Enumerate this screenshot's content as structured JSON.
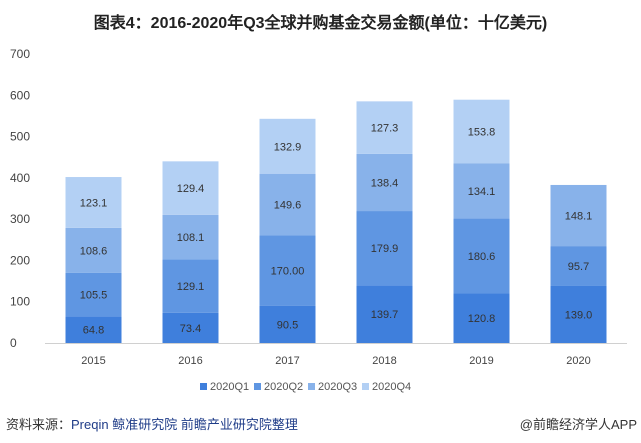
{
  "chart_data": {
    "type": "stacked-bar",
    "title": "图表4：2016-2020年Q3全球并购基金交易金额(单位：十亿美元)",
    "categories": [
      "2015",
      "2016",
      "2017",
      "2018",
      "2019",
      "2020"
    ],
    "series": [
      {
        "name": "2020Q1",
        "color": "#3f7fdc",
        "values": [
          64.8,
          73.4,
          90.5,
          139.7,
          120.8,
          139.0
        ],
        "labels": [
          "64.8",
          "73.4",
          "90.5",
          "139.7",
          "120.8",
          "139.0"
        ]
      },
      {
        "name": "2020Q2",
        "color": "#5f96e2",
        "values": [
          105.5,
          129.1,
          170.0,
          179.9,
          180.6,
          95.7
        ],
        "labels": [
          "105.5",
          "129.1",
          "170.00",
          "179.9",
          "180.6",
          "95.7"
        ]
      },
      {
        "name": "2020Q3",
        "color": "#88b2ea",
        "values": [
          108.6,
          108.1,
          149.6,
          138.4,
          134.1,
          148.1
        ],
        "labels": [
          "108.6",
          "108.1",
          "149.6",
          "138.4",
          "134.1",
          "148.1"
        ]
      },
      {
        "name": "2020Q4",
        "color": "#b3d0f4",
        "values": [
          123.1,
          129.4,
          132.9,
          127.3,
          153.8,
          null
        ],
        "labels": [
          "123.1",
          "129.4",
          "132.9",
          "127.3",
          "153.8",
          ""
        ]
      }
    ],
    "ylim": [
      0,
      700
    ],
    "yticks": [
      0,
      100,
      200,
      300,
      400,
      500,
      600,
      700
    ],
    "grid": false,
    "legend": "bottom"
  },
  "footer": {
    "source_label": "资料来源：",
    "source_text": "Preqin 鲸准研究院 前瞻产业研究院整理",
    "credit": "@前瞻经济学人APP"
  }
}
